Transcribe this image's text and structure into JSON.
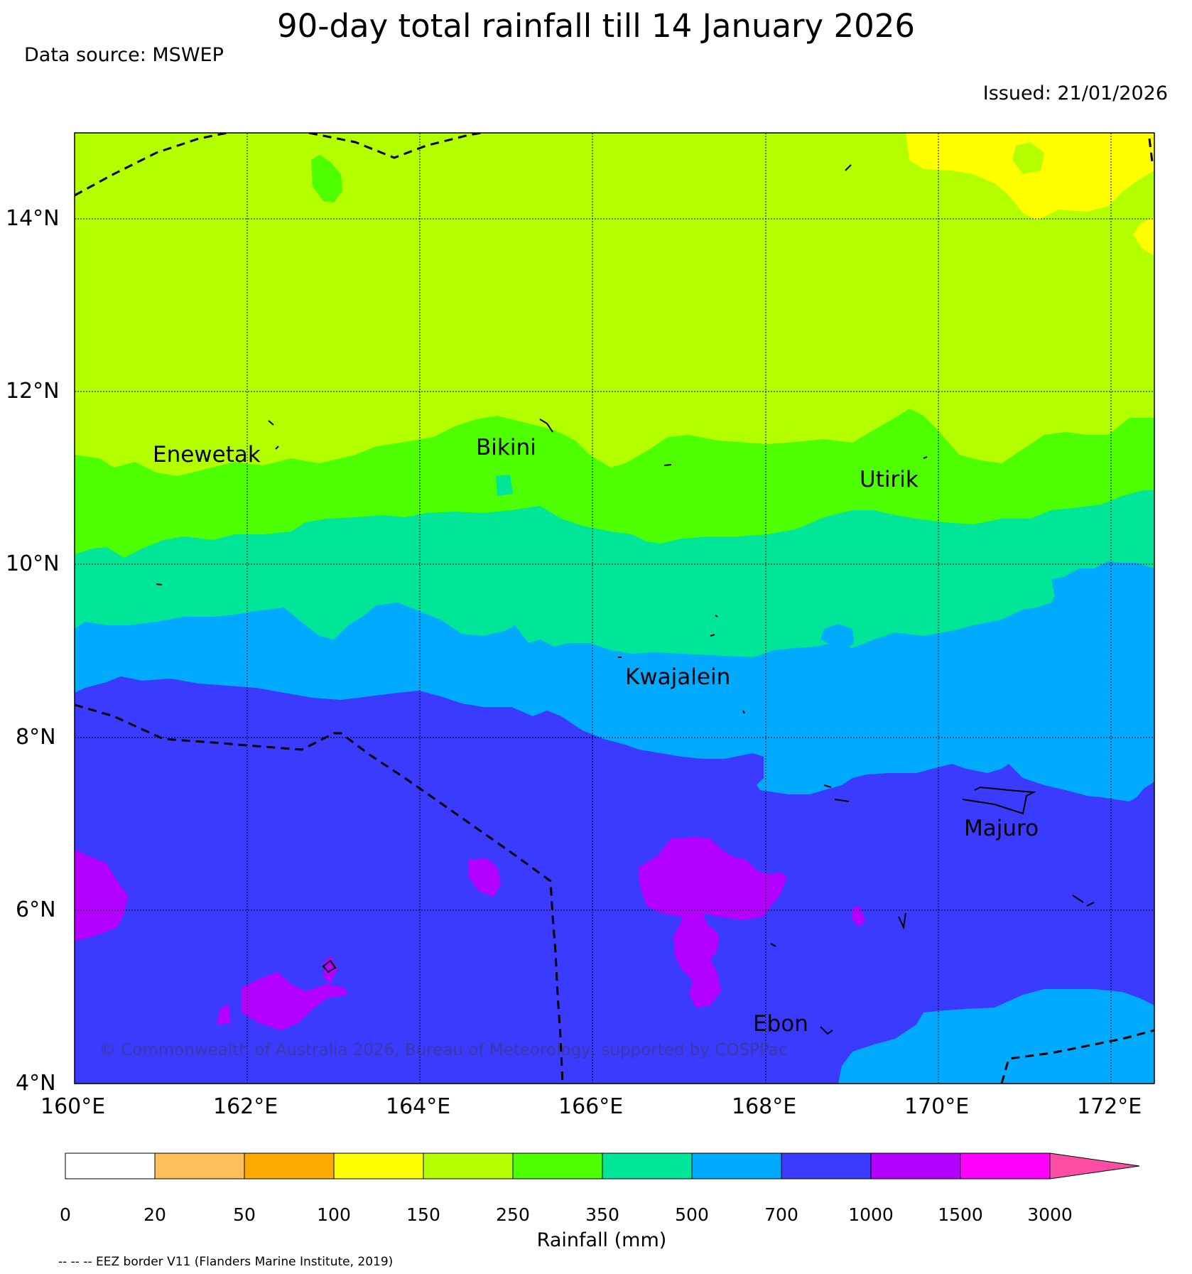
{
  "header": {
    "title": "90-day total rainfall till 14 January 2026",
    "source": "Data source: MSWEP",
    "issued": "Issued: 21/01/2026"
  },
  "map": {
    "lat_labels": [
      "14°N",
      "12°N",
      "10°N",
      "8°N",
      "6°N",
      "4°N"
    ],
    "lon_labels": [
      "160°E",
      "162°E",
      "164°E",
      "166°E",
      "168°E",
      "170°E",
      "172°E"
    ],
    "places": [
      "Enewetak",
      "Bikini",
      "Utirik",
      "Kwajalein",
      "Majuro",
      "Ebon"
    ],
    "copyright": "© Commonwealth of Australia 2026, Bureau of Meteorology, supported by COSPPac",
    "colors": {
      "c150_250": "#b3ff00",
      "c250_350": "#4dff00",
      "c350_500": "#00e699",
      "c500_700": "#00aaff",
      "c700_1000": "#3b3bff",
      "c1000_1500": "#b300ff",
      "c100_150": "#ffff00"
    }
  },
  "legend": {
    "label": "Rainfall (mm)",
    "ticks": [
      "0",
      "20",
      "50",
      "100",
      "150",
      "250",
      "350",
      "500",
      "700",
      "1000",
      "1500",
      "3000"
    ],
    "colors": [
      "#ffffff",
      "#ffbf5a",
      "#ffaa00",
      "#ffff00",
      "#b3ff00",
      "#4dff00",
      "#00e699",
      "#00aaff",
      "#3b3bff",
      "#b300ff",
      "#ff00ff"
    ],
    "extend_color": "#ff4da6"
  },
  "footer": {
    "eez_note": "-- -- -- EEZ border V11 (Flanders Marine Institute, 2019)"
  }
}
